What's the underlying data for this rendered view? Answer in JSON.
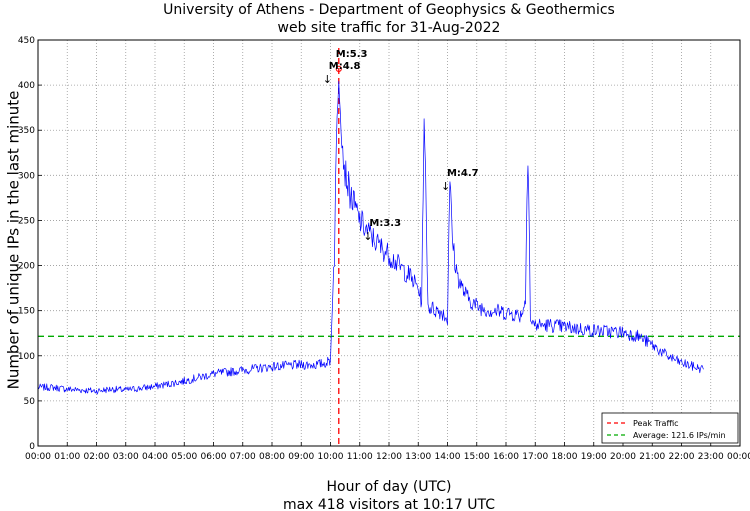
{
  "chart_data": {
    "type": "line",
    "title": "University of Athens - Department of Geophysics & Geothermics",
    "subtitle": "web site traffic for 31-Aug-2022",
    "xlabel": "Hour of day (UTC)",
    "footer": "max 418 visitors at 10:17 UTC",
    "ylabel": "Number of unique IPs in the last minute",
    "xlim": [
      0,
      1440
    ],
    "ylim": [
      0,
      450
    ],
    "x_ticks": [
      "00:00",
      "01:00",
      "02:00",
      "03:00",
      "04:00",
      "05:00",
      "06:00",
      "07:00",
      "08:00",
      "09:00",
      "10:00",
      "11:00",
      "12:00",
      "13:00",
      "14:00",
      "15:00",
      "16:00",
      "17:00",
      "18:00",
      "19:00",
      "20:00",
      "21:00",
      "22:00",
      "23:00",
      "00:00"
    ],
    "y_ticks": [
      "0",
      "50",
      "100",
      "150",
      "200",
      "250",
      "300",
      "350",
      "400",
      "450"
    ],
    "grid": true,
    "legend_placement": "bottom-right",
    "series": [
      {
        "role": "traffic",
        "color": "#0000ff",
        "x_unit": "minutes after 00:00 UTC",
        "x": [
          0,
          30,
          60,
          90,
          120,
          150,
          180,
          210,
          240,
          270,
          300,
          330,
          360,
          390,
          420,
          450,
          480,
          510,
          540,
          570,
          590,
          600,
          605,
          608,
          612,
          615,
          617,
          620,
          625,
          630,
          640,
          650,
          660,
          680,
          700,
          720,
          740,
          760,
          780,
          787,
          790,
          792,
          795,
          800,
          810,
          820,
          830,
          840,
          843,
          845,
          848,
          850,
          855,
          860,
          870,
          880,
          900,
          930,
          960,
          990,
          1000,
          1003,
          1005,
          1008,
          1010,
          1015,
          1020,
          1050,
          1080,
          1110,
          1140,
          1170,
          1200,
          1230,
          1260,
          1290,
          1320,
          1350,
          1365
        ],
        "y": [
          65,
          65,
          63,
          62,
          61,
          63,
          62,
          64,
          66,
          69,
          72,
          76,
          80,
          82,
          84,
          86,
          88,
          89,
          90,
          90,
          92,
          95,
          180,
          210,
          330,
          395,
          418,
          390,
          330,
          305,
          280,
          265,
          250,
          235,
          222,
          212,
          200,
          190,
          175,
          160,
          290,
          345,
          300,
          155,
          152,
          150,
          148,
          140,
          250,
          285,
          260,
          230,
          205,
          190,
          175,
          165,
          155,
          150,
          148,
          145,
          160,
          290,
          330,
          240,
          138,
          136,
          134,
          134,
          132,
          130,
          128,
          127,
          126,
          122,
          112,
          100,
          92,
          87,
          85
        ]
      }
    ],
    "reference_lines": [
      {
        "kind": "vertical",
        "x": 617,
        "color": "#ff0000",
        "legend": "Peak Traffic"
      },
      {
        "kind": "horizontal",
        "y": 121.6,
        "color": "#00aa00",
        "legend": "Average: 121.6 IPs/min"
      }
    ],
    "peak_marker": {
      "x": 617,
      "y": 418,
      "color": "#ff0000"
    },
    "annotations": [
      {
        "text": "M:5.3",
        "x": 617,
        "y": 418
      },
      {
        "text": "M:4.8",
        "x": 617,
        "y": 418
      },
      {
        "text": "M:3.3",
        "x": 690,
        "y": 225
      },
      {
        "text": "M:4.7",
        "x": 845,
        "y": 285
      }
    ]
  }
}
